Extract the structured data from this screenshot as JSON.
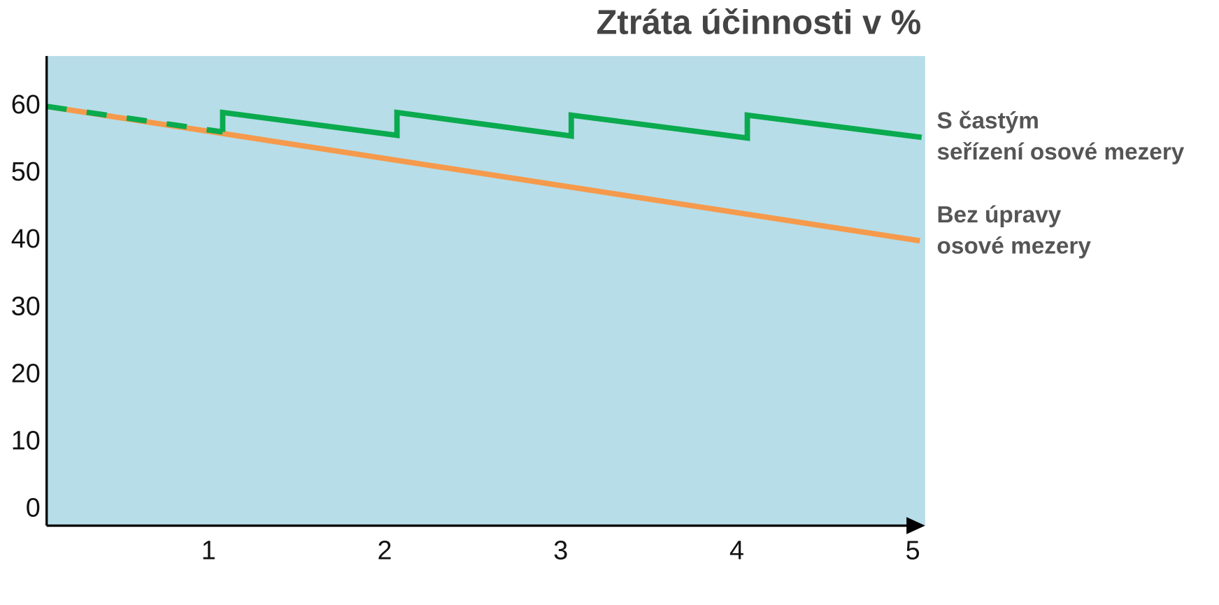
{
  "chart_data": {
    "type": "line",
    "title": "Ztráta účinnosti v %",
    "xlim": [
      0.08,
      5.07
    ],
    "xticks": [
      1,
      2,
      3,
      4,
      5
    ],
    "ylim": [
      -2.4,
      67.5
    ],
    "yticks": [
      0,
      10,
      20,
      30,
      40,
      50,
      60
    ],
    "background": "#b7dde8",
    "series": [
      {
        "name": "S častým\nseřízení osové mezery",
        "color": "#0aaa4e",
        "x": [
          0.08,
          1.08,
          1.08,
          2.07,
          2.07,
          3.06,
          3.06,
          4.06,
          4.06,
          5.05
        ],
        "values": [
          60,
          56.2,
          59.1,
          55.7,
          59.1,
          55.6,
          58.7,
          55.3,
          58.7,
          55.4
        ]
      },
      {
        "name": "Bez úpravy\nosové mezery",
        "color": "#f59a4c",
        "x": [
          0.08,
          5.04
        ],
        "values": [
          60,
          40
        ]
      }
    ]
  }
}
